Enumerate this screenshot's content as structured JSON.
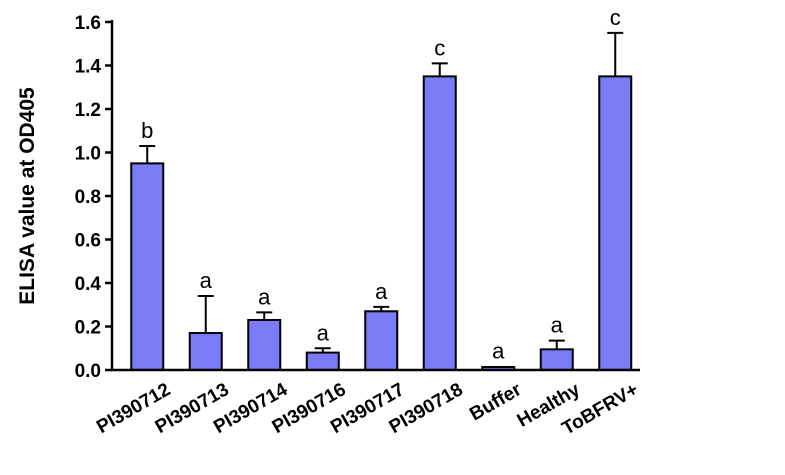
{
  "chart_data": {
    "type": "bar",
    "title": "",
    "xlabel": "",
    "ylabel": "ELISA value at OD405",
    "ylim": [
      0,
      1.6
    ],
    "yticks": [
      "0.0",
      "0.2",
      "0.4",
      "0.6",
      "0.8",
      "1.0",
      "1.2",
      "1.4",
      "1.6"
    ],
    "grid": false,
    "categories": [
      "PI390712",
      "PI390713",
      "PI390714",
      "PI390716",
      "PI390717",
      "PI390718",
      "Buffer",
      "Healthy",
      "ToBFRV+"
    ],
    "values": [
      0.95,
      0.17,
      0.23,
      0.08,
      0.27,
      1.35,
      0.01,
      0.095,
      1.35
    ],
    "error_upper": [
      1.03,
      0.34,
      0.265,
      0.1,
      0.29,
      1.41,
      0.015,
      0.135,
      1.55
    ],
    "significance_letters": [
      "b",
      "a",
      "a",
      "a",
      "a",
      "c",
      "a",
      "a",
      "c"
    ],
    "bar_color": "#7b7bf5",
    "bar_edge_color": "#000000"
  }
}
